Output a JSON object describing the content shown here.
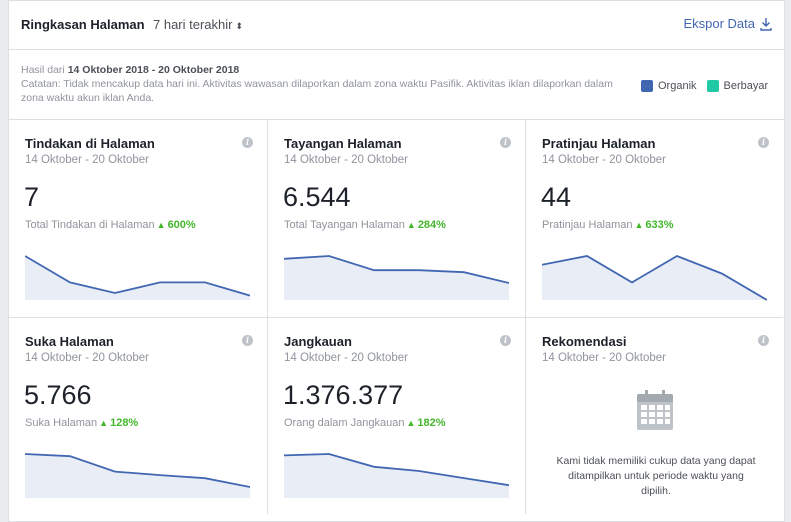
{
  "header": {
    "title": "Ringkasan Halaman",
    "range_label": "7 hari terakhir",
    "range_caret": "⬍",
    "export_label": "Ekspor Data"
  },
  "info": {
    "results_prefix": "Hasil dari",
    "results_range": "14 Oktober 2018 - 20 Oktober 2018",
    "note": "Catatan: Tidak mencakup data hari ini. Aktivitas wawasan dilaporkan dalam zona waktu Pasifik. Aktivitas iklan dilaporkan dalam zona waktu akun iklan Anda."
  },
  "legend": {
    "organic": "Organik",
    "paid": "Berbayar",
    "organic_color": "#4267b2",
    "paid_color": "#20c9a6"
  },
  "cards": [
    {
      "title": "Tindakan di Halaman",
      "date": "14 Oktober - 20 Oktober",
      "value": "7",
      "sub_label": "Total Tindakan di Halaman",
      "change": "600%",
      "series": [
        5,
        2,
        0.8,
        2,
        2,
        0.5
      ]
    },
    {
      "title": "Tayangan Halaman",
      "date": "14 Oktober - 20 Oktober",
      "value": "6.544",
      "sub_label": "Total Tayangan Halaman",
      "change": "284%",
      "series": [
        1450,
        1550,
        1050,
        1050,
        980,
        600
      ]
    },
    {
      "title": "Pratinjau Halaman",
      "date": "14 Oktober - 20 Oktober",
      "value": "44",
      "sub_label": "Pratinjau Halaman",
      "change": "633%",
      "series": [
        8,
        10,
        4,
        10,
        6,
        0
      ]
    },
    {
      "title": "Suka Halaman",
      "date": "14 Oktober - 20 Oktober",
      "value": "5.766",
      "sub_label": "Suka Halaman",
      "change": "128%",
      "series": [
        1000,
        950,
        600,
        520,
        450,
        250
      ]
    },
    {
      "title": "Jangkauan",
      "date": "14 Oktober - 20 Oktober",
      "value": "1.376.377",
      "sub_label": "Orang dalam Jangkauan",
      "change": "182%",
      "series": [
        300000,
        310000,
        220000,
        190000,
        140000,
        90000
      ]
    }
  ],
  "recommendation": {
    "title": "Rekomendasi",
    "date": "14 Oktober - 20 Oktober",
    "empty_text": "Kami tidak memiliki cukup data yang dapat ditampilkan untuk periode waktu yang dipilih."
  },
  "icons": {
    "info": "i",
    "up_arrow": "▲",
    "download": "download-icon",
    "calendar": "calendar-icon"
  }
}
